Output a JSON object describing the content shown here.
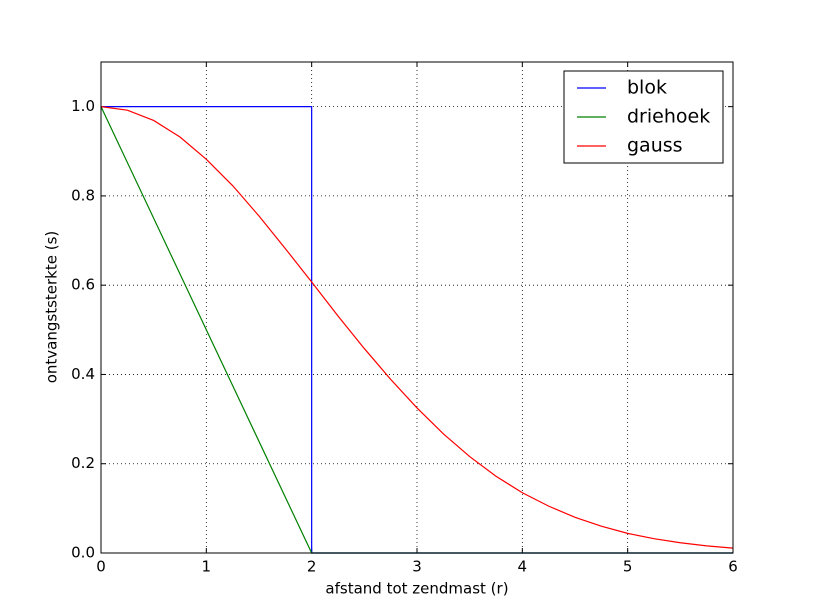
{
  "chart_data": {
    "type": "line",
    "xlabel": "afstand tot zendmast (r)",
    "ylabel": "ontvangststerkte (s)",
    "xlim": [
      0,
      6
    ],
    "xticks": [
      0,
      1,
      2,
      3,
      4,
      5,
      6
    ],
    "ylim": [
      0,
      1.1
    ],
    "yticks": [
      {
        "value": 0,
        "label": "0.0"
      },
      {
        "value": 0.2,
        "label": "0.2"
      },
      {
        "value": 0.4,
        "label": "0.4"
      },
      {
        "value": 0.6,
        "label": "0.6"
      },
      {
        "value": 0.8,
        "label": "0.8"
      },
      {
        "value": 1,
        "label": "1.0"
      }
    ],
    "grid": true,
    "legend": "upper right",
    "series": [
      {
        "name": "blok",
        "color": "#0000ff",
        "x": [
          0,
          2,
          2,
          6
        ],
        "values": [
          1,
          1,
          0,
          0
        ]
      },
      {
        "name": "driehoek",
        "color": "#008000",
        "x": [
          0,
          2,
          6
        ],
        "values": [
          1,
          0,
          0
        ]
      },
      {
        "name": "gauss",
        "color": "#ff0000",
        "x": [
          0,
          0.25,
          0.5,
          0.75,
          1,
          1.25,
          1.5,
          1.75,
          2,
          2.25,
          2.5,
          2.75,
          3,
          3.25,
          3.5,
          3.75,
          4,
          4.25,
          4.5,
          4.75,
          5,
          5.25,
          5.5,
          5.75,
          6
        ],
        "values": [
          1,
          0.992,
          0.969,
          0.932,
          0.882,
          0.823,
          0.755,
          0.682,
          0.607,
          0.531,
          0.458,
          0.389,
          0.325,
          0.267,
          0.216,
          0.172,
          0.135,
          0.105,
          0.08,
          0.06,
          0.044,
          0.032,
          0.023,
          0.016,
          0.011
        ]
      }
    ]
  }
}
